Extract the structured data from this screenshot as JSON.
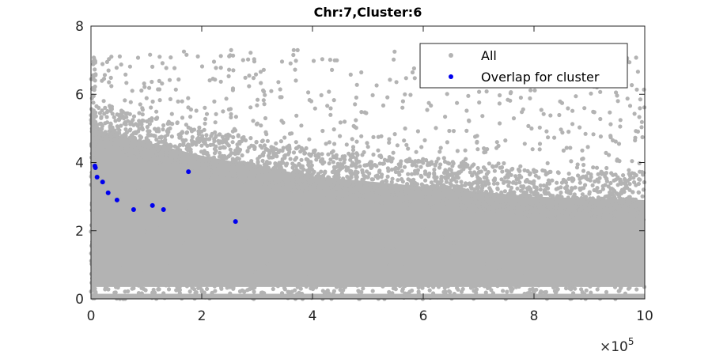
{
  "chart_data": {
    "type": "scatter",
    "title": "Chr:7,Cluster:6",
    "xlabel": "",
    "ylabel": "",
    "x_exponent_label": "×10",
    "x_exponent_power": "5",
    "xlim": [
      0,
      10
    ],
    "ylim": [
      0,
      8
    ],
    "x_ticks": [
      "0",
      "2",
      "4",
      "6",
      "8",
      "10"
    ],
    "y_ticks": [
      "0",
      "2",
      "4",
      "6",
      "8"
    ],
    "grid": false,
    "legend_position": "top-right",
    "series": [
      {
        "name": "All",
        "color": "#b3b3b3",
        "description": "dense cloud; core spans y≈0–4 near x=0 declining to y≈0–3 at x=10, sparse outliers up to y≈7.3",
        "dense_upper_edge": [
          [
            0,
            5.0
          ],
          [
            2,
            4.2
          ],
          [
            4,
            3.6
          ],
          [
            6,
            3.3
          ],
          [
            8,
            3.0
          ],
          [
            10,
            2.9
          ]
        ],
        "outlier_max_y": 7.3
      },
      {
        "name": "Overlap for cluster",
        "color": "#0000ee",
        "x": [
          0.07,
          0.08,
          0.11,
          0.21,
          0.31,
          0.47,
          0.77,
          1.11,
          1.31,
          1.76,
          2.61
        ],
        "y": [
          3.9,
          3.85,
          3.57,
          3.43,
          3.11,
          2.9,
          2.62,
          2.74,
          2.62,
          3.73,
          2.27
        ]
      }
    ]
  }
}
